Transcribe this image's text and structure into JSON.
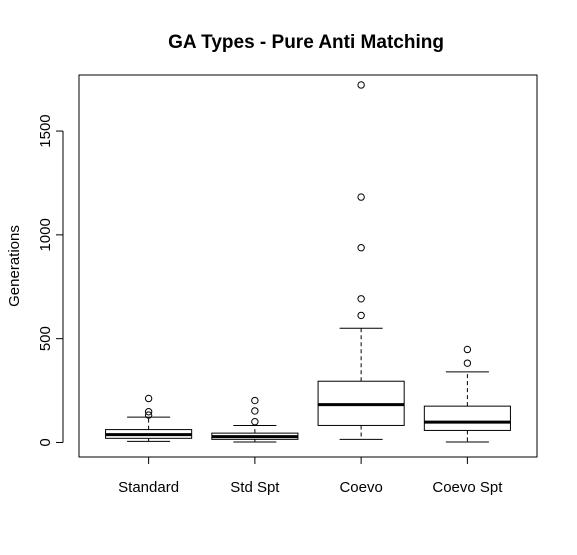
{
  "chart_data": {
    "type": "boxplot",
    "title": "GA Types - Pure Anti Matching",
    "xlabel": "",
    "ylabel": "Generations",
    "ylim": [
      -70,
      1770
    ],
    "yticks": [
      0,
      500,
      1000,
      1500
    ],
    "grid": false,
    "categories": [
      "Standard",
      "Std Spt",
      "Coevo",
      "Coevo Spt"
    ],
    "boxes": [
      {
        "category": "Standard",
        "whisker_low": 5,
        "q1": 20,
        "median": 38,
        "q3": 62,
        "whisker_high": 122,
        "outliers": [
          132,
          148,
          212
        ]
      },
      {
        "category": "Std Spt",
        "whisker_low": 2,
        "q1": 15,
        "median": 28,
        "q3": 45,
        "whisker_high": 82,
        "outliers": [
          100,
          152,
          202
        ]
      },
      {
        "category": "Coevo",
        "whisker_low": 15,
        "q1": 82,
        "median": 182,
        "q3": 295,
        "whisker_high": 550,
        "outliers": [
          612,
          692,
          938,
          1182,
          1722
        ]
      },
      {
        "category": "Coevo Spt",
        "whisker_low": 2,
        "q1": 58,
        "median": 98,
        "q3": 175,
        "whisker_high": 340,
        "outliers": [
          382,
          448
        ]
      }
    ]
  }
}
